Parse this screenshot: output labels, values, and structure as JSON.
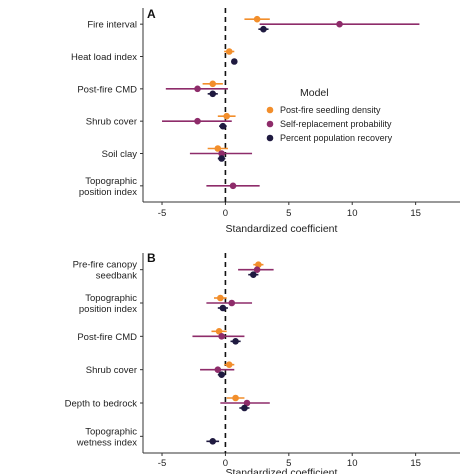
{
  "colors": {
    "seedling": "#f28e2b",
    "selfrep": "#8e2c6a",
    "recovery": "#1f1a40"
  },
  "legend": {
    "title": "Model",
    "items": [
      {
        "label": "Post-fire seedling density",
        "color_key": "seedling"
      },
      {
        "label": "Self-replacement probability",
        "color_key": "selfrep"
      },
      {
        "label": "Percent population recovery",
        "color_key": "recovery"
      }
    ]
  },
  "chart_data": [
    {
      "type": "scatter",
      "panel_label": "A",
      "xlabel": "Standardized coefficient",
      "xlim": [
        -6.5,
        18.5
      ],
      "xticks": [
        -5,
        0,
        5,
        10,
        15
      ],
      "reference_line": 0,
      "categories": [
        [
          "Fire interval"
        ],
        [
          "Heat load index"
        ],
        [
          "Post-fire CMD"
        ],
        [
          "Shrub cover"
        ],
        [
          "Soil clay"
        ],
        [
          "Topographic",
          "position index"
        ]
      ],
      "series": [
        {
          "name": "Post-fire seedling density",
          "color_key": "seedling",
          "points": [
            {
              "cat": 0,
              "value": 2.5,
              "low": 1.5,
              "high": 3.5
            },
            {
              "cat": 1,
              "value": 0.3,
              "low": -0.1,
              "high": 0.7
            },
            {
              "cat": 2,
              "value": -1.0,
              "low": -1.8,
              "high": -0.2
            },
            {
              "cat": 3,
              "value": 0.1,
              "low": -0.6,
              "high": 0.8
            },
            {
              "cat": 4,
              "value": -0.6,
              "low": -1.4,
              "high": 0.2
            }
          ]
        },
        {
          "name": "Self-replacement probability",
          "color_key": "selfrep",
          "points": [
            {
              "cat": 0,
              "value": 9.0,
              "low": 2.7,
              "high": 15.3
            },
            {
              "cat": 2,
              "value": -2.2,
              "low": -4.7,
              "high": 0.2
            },
            {
              "cat": 3,
              "value": -2.2,
              "low": -5.0,
              "high": 0.5
            },
            {
              "cat": 4,
              "value": -0.3,
              "low": -2.8,
              "high": 2.1
            },
            {
              "cat": 5,
              "value": 0.6,
              "low": -1.5,
              "high": 2.7
            }
          ]
        },
        {
          "name": "Percent population recovery",
          "color_key": "recovery",
          "points": [
            {
              "cat": 0,
              "value": 3.0,
              "low": 2.6,
              "high": 3.4
            },
            {
              "cat": 1,
              "value": 0.7,
              "low": 0.5,
              "high": 0.9
            },
            {
              "cat": 2,
              "value": -1.0,
              "low": -1.4,
              "high": -0.6
            },
            {
              "cat": 3,
              "value": -0.2,
              "low": -0.5,
              "high": 0.1
            },
            {
              "cat": 4,
              "value": -0.3,
              "low": -0.6,
              "high": 0.0
            }
          ]
        }
      ]
    },
    {
      "type": "scatter",
      "panel_label": "B",
      "xlabel": "Standardized coefficient",
      "xlim": [
        -6.5,
        18.5
      ],
      "xticks": [
        -5,
        0,
        5,
        10,
        15
      ],
      "reference_line": 0,
      "categories": [
        [
          "Pre-fire canopy",
          "seedbank"
        ],
        [
          "Topographic",
          "position index"
        ],
        [
          "Post-fire CMD"
        ],
        [
          "Shrub cover"
        ],
        [
          "Depth to bedrock"
        ],
        [
          "Topographic",
          "wetness index"
        ]
      ],
      "series": [
        {
          "name": "Post-fire seedling density",
          "color_key": "seedling",
          "points": [
            {
              "cat": 0,
              "value": 2.6,
              "low": 2.2,
              "high": 3.0
            },
            {
              "cat": 1,
              "value": -0.4,
              "low": -0.9,
              "high": 0.1
            },
            {
              "cat": 2,
              "value": -0.5,
              "low": -1.1,
              "high": 0.1
            },
            {
              "cat": 3,
              "value": 0.3,
              "low": -0.1,
              "high": 0.7
            },
            {
              "cat": 4,
              "value": 0.8,
              "low": 0.1,
              "high": 1.5
            }
          ]
        },
        {
          "name": "Self-replacement probability",
          "color_key": "selfrep",
          "points": [
            {
              "cat": 0,
              "value": 2.5,
              "low": 1.0,
              "high": 3.8
            },
            {
              "cat": 1,
              "value": 0.5,
              "low": -1.5,
              "high": 2.1
            },
            {
              "cat": 2,
              "value": -0.3,
              "low": -2.6,
              "high": 1.5
            },
            {
              "cat": 3,
              "value": -0.6,
              "low": -2.0,
              "high": 0.7
            },
            {
              "cat": 4,
              "value": 1.7,
              "low": -0.4,
              "high": 3.5
            }
          ]
        },
        {
          "name": "Percent population recovery",
          "color_key": "recovery",
          "points": [
            {
              "cat": 0,
              "value": 2.2,
              "low": 1.8,
              "high": 2.6
            },
            {
              "cat": 1,
              "value": -0.2,
              "low": -0.6,
              "high": 0.2
            },
            {
              "cat": 2,
              "value": 0.8,
              "low": 0.4,
              "high": 1.2
            },
            {
              "cat": 3,
              "value": -0.3,
              "low": -0.6,
              "high": 0.0
            },
            {
              "cat": 4,
              "value": 1.5,
              "low": 1.1,
              "high": 1.9
            },
            {
              "cat": 5,
              "value": -1.0,
              "low": -1.5,
              "high": -0.5
            }
          ]
        }
      ]
    }
  ]
}
